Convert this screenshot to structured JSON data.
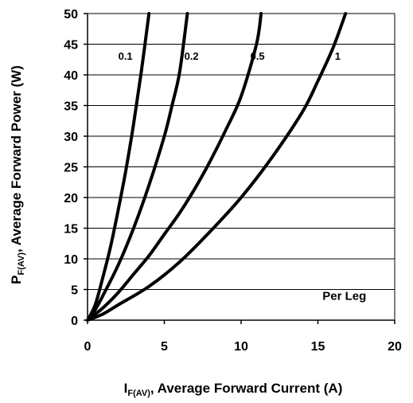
{
  "chart_data": {
    "type": "line",
    "xlabel_main": "I",
    "xlabel_sub": "F(AV)",
    "xlabel_rest": ", Average Forward Current (A)",
    "ylabel_main": "P",
    "ylabel_sub": "F(AV)",
    "ylabel_rest": ", Average Forward Power (W)",
    "xlim": [
      0,
      20
    ],
    "ylim": [
      0,
      50
    ],
    "x_ticks": [
      "0",
      "5",
      "10",
      "15",
      "20"
    ],
    "y_ticks": [
      "0",
      "5",
      "10",
      "15",
      "20",
      "25",
      "30",
      "35",
      "40",
      "45",
      "50"
    ],
    "grid": "horizontal",
    "annotation": "Per Leg",
    "series": [
      {
        "name": "0.1",
        "x": [
          0,
          0.5,
          1,
          1.5,
          2,
          2.5,
          3,
          3.5,
          4
        ],
        "y": [
          0,
          2.5,
          7,
          12,
          18,
          24.5,
          32,
          40.5,
          50
        ]
      },
      {
        "name": "0.2",
        "x": [
          0,
          0.5,
          1,
          2,
          3,
          4,
          5,
          5.5,
          6,
          6.5
        ],
        "y": [
          0,
          1.7,
          4,
          9,
          15,
          22,
          30,
          35,
          40.5,
          50
        ]
      },
      {
        "name": "0.5",
        "x": [
          0,
          1,
          2,
          3,
          4,
          5,
          6,
          7,
          8,
          9,
          10,
          11,
          11.3
        ],
        "y": [
          0,
          2,
          4.5,
          7.5,
          10.5,
          14,
          17.5,
          21.5,
          26,
          31,
          36.5,
          45,
          50
        ]
      },
      {
        "name": "1",
        "x": [
          0,
          1,
          2,
          4,
          6,
          8,
          10,
          12,
          14,
          15,
          16,
          16.8
        ],
        "y": [
          0,
          1,
          2.5,
          5.5,
          9.5,
          14.5,
          20,
          26.5,
          34,
          39,
          44.5,
          50
        ]
      }
    ]
  }
}
